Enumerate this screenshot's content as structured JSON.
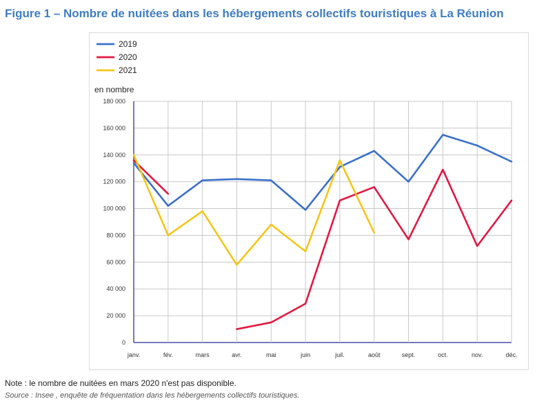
{
  "title": "Figure 1 – Nombre de nuitées dans les hébergements collectifs touristiques à La Réunion",
  "note": "Note : le nombre de nuitées en mars 2020 n'est pas disponible.",
  "source": "Source : Insee , enquête de fréquentation dans les hébergements collectifs touristiques.",
  "chart_data": {
    "type": "line",
    "ylabel": "en nombre",
    "ylim": [
      0,
      180000
    ],
    "yticks": [
      0,
      20000,
      40000,
      60000,
      80000,
      100000,
      120000,
      140000,
      160000,
      180000
    ],
    "ytick_labels": [
      "0",
      "20 000",
      "40 000",
      "60 000",
      "80 000",
      "100 000",
      "120 000",
      "140 000",
      "160 000",
      "180 000"
    ],
    "categories": [
      "janv.",
      "fév.",
      "mars",
      "avr.",
      "mai",
      "juin",
      "juil.",
      "août",
      "sept.",
      "oct.",
      "nov.",
      "déc."
    ],
    "grid": true,
    "legend_position": "top-left",
    "series": [
      {
        "name": "2019",
        "color": "#3a6fc9",
        "values": [
          134000,
          102000,
          121000,
          122000,
          121000,
          99000,
          131000,
          143000,
          120000,
          155000,
          147000,
          135000
        ]
      },
      {
        "name": "2020",
        "color": "#e3173f",
        "values": [
          136000,
          111000,
          null,
          10000,
          15000,
          29000,
          106000,
          116000,
          77000,
          129000,
          72000,
          106000
        ]
      },
      {
        "name": "2021",
        "color": "#f5c518",
        "values": [
          140000,
          80000,
          98000,
          58000,
          88000,
          68000,
          136000,
          82000,
          null,
          null,
          null,
          null
        ]
      }
    ]
  }
}
